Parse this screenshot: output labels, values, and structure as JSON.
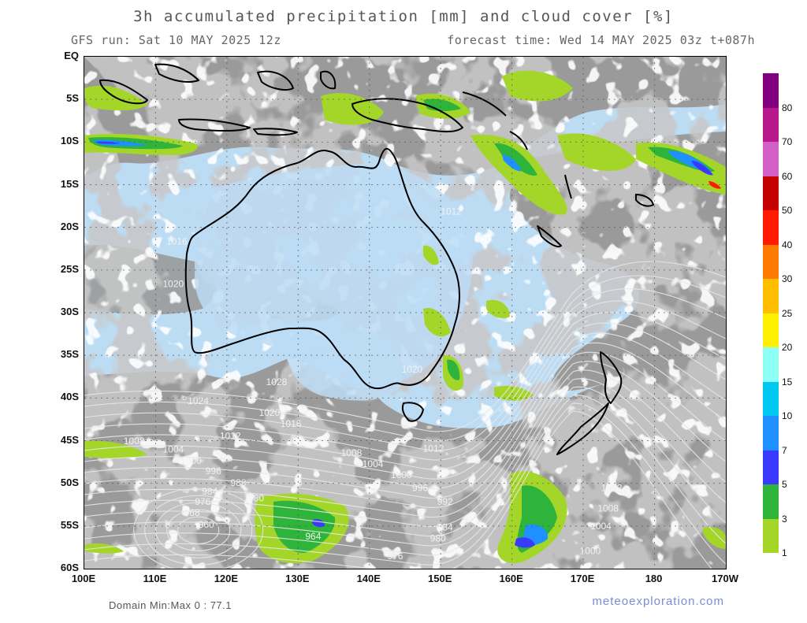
{
  "header": {
    "title": "3h accumulated precipitation [mm] and cloud cover [%]",
    "run": "GFS run: Sat 10 MAY 2025 12z",
    "forecast": "forecast time: Wed 14 MAY 2025 03z  t+087h"
  },
  "axes": {
    "lat_labels": [
      "EQ",
      "5S",
      "10S",
      "15S",
      "20S",
      "25S",
      "30S",
      "35S",
      "40S",
      "45S",
      "50S",
      "55S",
      "60S"
    ],
    "lon_labels": [
      "100E",
      "110E",
      "120E",
      "130E",
      "140E",
      "150E",
      "160E",
      "170E",
      "180",
      "170W"
    ]
  },
  "legend": {
    "labels": [
      "80",
      "70",
      "60",
      "50",
      "40",
      "30",
      "25",
      "20",
      "15",
      "10",
      "7",
      "5",
      "3",
      "1"
    ],
    "colors": [
      "#800080",
      "#b8198a",
      "#d15fc5",
      "#c40000",
      "#ff1a00",
      "#ff7a00",
      "#ffbe00",
      "#fff000",
      "#8dfff5",
      "#00c8f0",
      "#1e90ff",
      "#3a3aff",
      "#2eb43a",
      "#a4d62a"
    ]
  },
  "isobars": [
    {
      "label": "1008",
      "lon": 105.5,
      "lat": -45.4
    },
    {
      "label": "1004",
      "lon": 111,
      "lat": -46.4
    },
    {
      "label": "1000",
      "lon": 113.5,
      "lat": -47.7
    },
    {
      "label": "996",
      "lon": 117,
      "lat": -48.9
    },
    {
      "label": "988",
      "lon": 120.5,
      "lat": -50.3
    },
    {
      "label": "984",
      "lon": 116.5,
      "lat": -51.3
    },
    {
      "label": "980",
      "lon": 123,
      "lat": -52.1
    },
    {
      "label": "976",
      "lon": 115.5,
      "lat": -52.5
    },
    {
      "label": "968",
      "lon": 114,
      "lat": -53.8
    },
    {
      "label": "960",
      "lon": 116,
      "lat": -55.2
    },
    {
      "label": "964",
      "lon": 131,
      "lat": -56.6
    },
    {
      "label": "976",
      "lon": 142.5,
      "lat": -58.9
    },
    {
      "label": "980",
      "lon": 148.5,
      "lat": -56.8
    },
    {
      "label": "984",
      "lon": 149.5,
      "lat": -55.5
    },
    {
      "label": "992",
      "lon": 149.5,
      "lat": -52.5
    },
    {
      "label": "996",
      "lon": 146,
      "lat": -50.9
    },
    {
      "label": "1000",
      "lon": 143,
      "lat": -49.4
    },
    {
      "label": "1004",
      "lon": 139,
      "lat": -48.1
    },
    {
      "label": "1008",
      "lon": 136,
      "lat": -46.8
    },
    {
      "label": "1012",
      "lon": 147.5,
      "lat": -46.3
    },
    {
      "label": "1012",
      "lon": 119,
      "lat": -44.8
    },
    {
      "label": "1016",
      "lon": 127.5,
      "lat": -43.4
    },
    {
      "label": "1020",
      "lon": 124.5,
      "lat": -42.1
    },
    {
      "label": "1024",
      "lon": 114.5,
      "lat": -40.7
    },
    {
      "label": "1028",
      "lon": 125.5,
      "lat": -38.5
    },
    {
      "label": "1020",
      "lon": 111,
      "lat": -27.0
    },
    {
      "label": "1020",
      "lon": 144.5,
      "lat": -37.0
    },
    {
      "label": "1012",
      "lon": 172.5,
      "lat": -50.9
    },
    {
      "label": "1008",
      "lon": 172,
      "lat": -53.3
    },
    {
      "label": "1004",
      "lon": 171,
      "lat": -55.4
    },
    {
      "label": "1000",
      "lon": 169.5,
      "lat": -58.3
    },
    {
      "label": "1012",
      "lon": 150,
      "lat": -18.5
    },
    {
      "label": "1016",
      "lon": 111.5,
      "lat": -22.0
    }
  ],
  "footer": {
    "domain": "Domain Min:Max 0 : 77.1",
    "site": "meteoexploration.com"
  }
}
